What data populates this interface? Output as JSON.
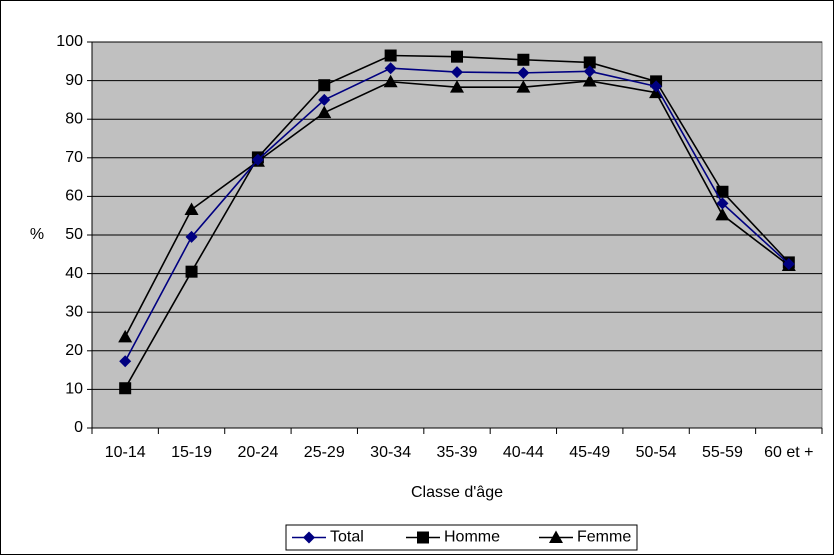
{
  "chart_data": {
    "type": "line",
    "title": "",
    "xlabel": "Classe d'âge",
    "ylabel": "%",
    "ylim": [
      0,
      100
    ],
    "yticks": [
      0,
      10,
      20,
      30,
      40,
      50,
      60,
      70,
      80,
      90,
      100
    ],
    "grid": true,
    "legend_position": "bottom",
    "plot_background": "#c0c0c0",
    "categories": [
      "10-14",
      "15-19",
      "20-24",
      "25-29",
      "30-34",
      "35-39",
      "40-44",
      "45-49",
      "50-54",
      "55-59",
      "60 et +"
    ],
    "series": [
      {
        "name": "Total",
        "color": "#000080",
        "marker": "diamond",
        "values": [
          17.3,
          49.5,
          69.5,
          85.0,
          93.2,
          92.2,
          92.0,
          92.4,
          88.5,
          58.2,
          42.5
        ]
      },
      {
        "name": "Homme",
        "color": "#000000",
        "marker": "square",
        "values": [
          10.3,
          40.5,
          70.1,
          88.8,
          96.5,
          96.2,
          95.4,
          94.7,
          89.8,
          61.2,
          42.9
        ]
      },
      {
        "name": "Femme",
        "color": "#000000",
        "marker": "triangle",
        "values": [
          23.6,
          56.6,
          69.1,
          81.7,
          89.7,
          88.3,
          88.3,
          89.9,
          86.9,
          55.2,
          42.1
        ]
      }
    ]
  }
}
